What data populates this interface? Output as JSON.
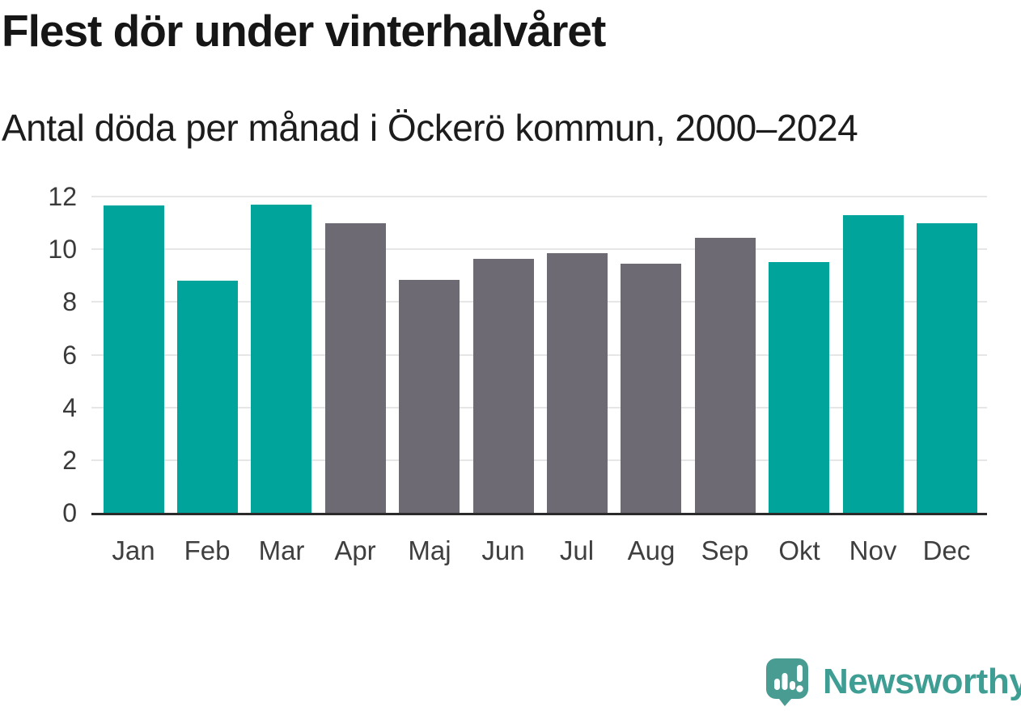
{
  "header": {
    "title": "Flest dör under vinterhalvåret",
    "subtitle": "Antal döda per månad i Öckerö kommun, 2000–2024"
  },
  "chart_data": {
    "type": "bar",
    "title": "Flest dör under vinterhalvåret",
    "subtitle": "Antal döda per månad i Öckerö kommun, 2000–2024",
    "categories": [
      "Jan",
      "Feb",
      "Mar",
      "Apr",
      "Maj",
      "Jun",
      "Jul",
      "Aug",
      "Sep",
      "Okt",
      "Nov",
      "Dec"
    ],
    "values": [
      11.65,
      8.8,
      11.7,
      11.0,
      8.85,
      9.65,
      9.85,
      9.45,
      10.45,
      9.5,
      11.3,
      11.0
    ],
    "point_groups": [
      "winter",
      "winter",
      "winter",
      "summer",
      "summer",
      "summer",
      "summer",
      "summer",
      "summer",
      "winter",
      "winter",
      "winter"
    ],
    "palette": {
      "winter": "#00a49a",
      "summer": "#6d6a73"
    },
    "xlabel": "",
    "ylabel": "",
    "ylim": [
      0,
      12
    ],
    "yticks": [
      0,
      2,
      4,
      6,
      8,
      10,
      12
    ],
    "grid": "horizontal-light",
    "legend": "none"
  },
  "colors": {
    "title_text": "#161616",
    "subtitle_text": "#1c1c1c",
    "axis_line": "#2b2b2b",
    "gridline": "#e6e6e6",
    "tick_label": "#3a3a3a",
    "bar_highlight": "#00a49a",
    "bar_base": "#6d6a73"
  },
  "footer": {
    "brand_name": "Newsworthy",
    "brand_color": "#3f9e94",
    "logo_icon": "newsworthy-speech-bubble-bar-chart-icon",
    "logo_bubble_color": "#489c92",
    "logo_glyph_color": "#ffffff"
  }
}
